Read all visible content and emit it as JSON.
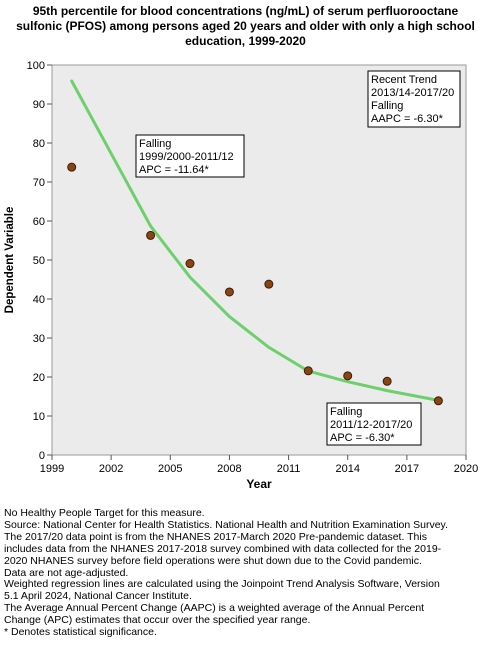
{
  "title_lines": [
    "95th percentile for blood concentrations (ng/mL) of serum perfluorooctane",
    "sulfonic (PFOS) among persons aged 20 years and older with only a high school",
    "education, 1999-2020"
  ],
  "chart_data": {
    "type": "scatter",
    "xlabel": "Year",
    "ylabel": "Dependent Variable",
    "xlim": [
      1999,
      2020
    ],
    "ylim": [
      0,
      100
    ],
    "x_ticks": [
      1999,
      2002,
      2005,
      2008,
      2011,
      2014,
      2017,
      2020
    ],
    "y_ticks": [
      0,
      10,
      20,
      30,
      40,
      50,
      60,
      70,
      80,
      90,
      100
    ],
    "grid": false,
    "observed": [
      {
        "x": 2000,
        "y": 73.8
      },
      {
        "x": 2004,
        "y": 56.3
      },
      {
        "x": 2006,
        "y": 49.1
      },
      {
        "x": 2008,
        "y": 41.8
      },
      {
        "x": 2010,
        "y": 43.8
      },
      {
        "x": 2012,
        "y": 21.6
      },
      {
        "x": 2014,
        "y": 20.3
      },
      {
        "x": 2016,
        "y": 18.9
      },
      {
        "x": 2018.6,
        "y": 13.9
      }
    ],
    "trend_line": [
      {
        "x": 2000,
        "y": 95.9
      },
      {
        "x": 2004,
        "y": 58.7
      },
      {
        "x": 2006,
        "y": 45.6
      },
      {
        "x": 2008,
        "y": 35.5
      },
      {
        "x": 2010,
        "y": 27.6
      },
      {
        "x": 2012,
        "y": 21.5
      },
      {
        "x": 2014,
        "y": 18.8
      },
      {
        "x": 2016,
        "y": 16.5
      },
      {
        "x": 2018.6,
        "y": 14.0
      }
    ],
    "colors": {
      "trend_line": "#6dd06d",
      "point_fill": "#8b4513",
      "point_stroke": "#3a1d05",
      "plot_background": "#ebebeb"
    },
    "annotations": [
      {
        "lines": [
          "Falling",
          "1999/2000-2011/12",
          "APC = -11.64*"
        ],
        "anchor": "upper-left"
      },
      {
        "lines": [
          "Recent Trend",
          "2013/14-2017/20",
          "Falling",
          "AAPC = -6.30*"
        ],
        "anchor": "top-right"
      },
      {
        "lines": [
          "Falling",
          "2011/12-2017/20",
          "APC = -6.30*"
        ],
        "anchor": "bottom-right"
      }
    ]
  },
  "footer_lines": [
    "No Healthy People Target for this measure.",
    "Source: National Center for Health Statistics. National Health and Nutrition Examination Survey.",
    "The 2017/20 data point is from the NHANES 2017-March 2020 Pre-pandemic dataset. This",
    "includes data from the NHANES 2017-2018 survey combined with data collected for the 2019-",
    "2020 NHANES survey before field operations were shut down due to the Covid pandemic.",
    "Data are not age-adjusted.",
    "Weighted regression lines are calculated using the Joinpoint Trend Analysis Software, Version",
    "5.1 April 2024, National Cancer Institute.",
    "The Average Annual Percent Change (AAPC) is a weighted average of the Annual Percent",
    "Change (APC) estimates that occur over the specified year range.",
    "* Denotes statistical significance."
  ]
}
